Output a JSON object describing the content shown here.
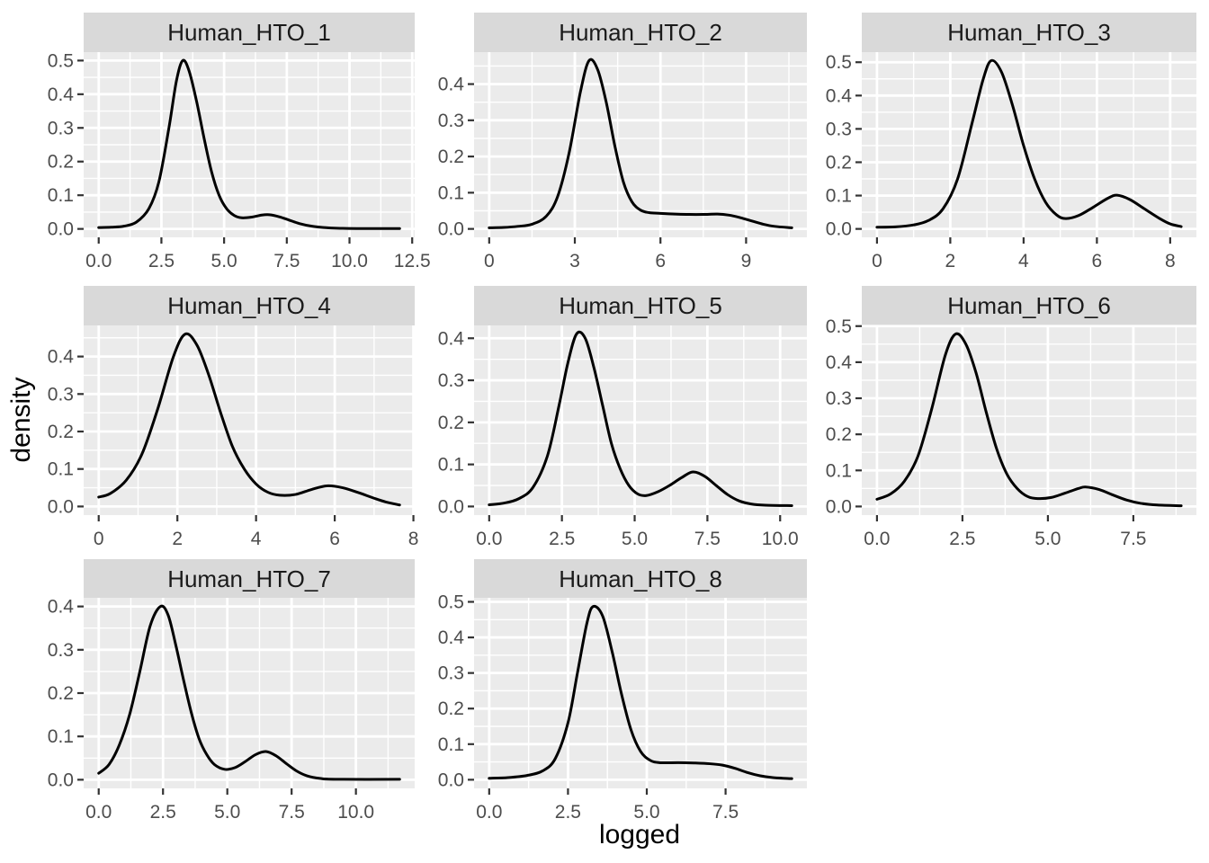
{
  "chart_data": {
    "type": "line",
    "subtype": "faceted-density",
    "xlabel": "logged",
    "ylabel": "density",
    "grid": "on",
    "legend": "none",
    "facet_grid": {
      "rows": 3,
      "cols": 3,
      "filled_cells": 8
    },
    "facets": [
      {
        "label": "Human_HTO_1",
        "x_max": 12.0,
        "y_peak": 0.5,
        "x_ticks": [
          0,
          2.5,
          5,
          7.5,
          10,
          12.5
        ],
        "x_tick_labels": [
          "0.0",
          "2.5",
          "5.0",
          "7.5",
          "10.0",
          "12.5"
        ],
        "y_ticks": [
          0,
          0.1,
          0.2,
          0.3,
          0.4,
          0.5
        ],
        "y_tick_labels": [
          "0.0",
          "0.1",
          "0.2",
          "0.3",
          "0.4",
          "0.5"
        ],
        "points": [
          [
            0,
            0.004
          ],
          [
            0.5,
            0.005
          ],
          [
            1,
            0.008
          ],
          [
            1.5,
            0.02
          ],
          [
            2,
            0.06
          ],
          [
            2.4,
            0.14
          ],
          [
            2.8,
            0.3
          ],
          [
            3.1,
            0.44
          ],
          [
            3.35,
            0.5
          ],
          [
            3.6,
            0.47
          ],
          [
            3.9,
            0.38
          ],
          [
            4.2,
            0.27
          ],
          [
            4.5,
            0.17
          ],
          [
            4.8,
            0.1
          ],
          [
            5.1,
            0.06
          ],
          [
            5.4,
            0.04
          ],
          [
            5.7,
            0.033
          ],
          [
            6.1,
            0.035
          ],
          [
            6.5,
            0.041
          ],
          [
            6.8,
            0.042
          ],
          [
            7.2,
            0.036
          ],
          [
            7.6,
            0.026
          ],
          [
            8,
            0.016
          ],
          [
            8.5,
            0.008
          ],
          [
            9,
            0.004
          ],
          [
            9.5,
            0.002
          ],
          [
            10.5,
            0.001
          ],
          [
            12,
            0.001
          ]
        ]
      },
      {
        "label": "Human_HTO_2",
        "x_max": 10.6,
        "y_peak": 0.465,
        "x_ticks": [
          0,
          3,
          6,
          9
        ],
        "x_tick_labels": [
          "0",
          "3",
          "6",
          "9"
        ],
        "y_ticks": [
          0,
          0.1,
          0.2,
          0.3,
          0.4
        ],
        "y_tick_labels": [
          "0.0",
          "0.1",
          "0.2",
          "0.3",
          "0.4"
        ],
        "points": [
          [
            0,
            0.003
          ],
          [
            0.5,
            0.004
          ],
          [
            1,
            0.007
          ],
          [
            1.5,
            0.013
          ],
          [
            2,
            0.035
          ],
          [
            2.4,
            0.09
          ],
          [
            2.8,
            0.21
          ],
          [
            3.2,
            0.38
          ],
          [
            3.5,
            0.465
          ],
          [
            3.8,
            0.44
          ],
          [
            4.1,
            0.35
          ],
          [
            4.4,
            0.23
          ],
          [
            4.7,
            0.13
          ],
          [
            5,
            0.075
          ],
          [
            5.3,
            0.052
          ],
          [
            5.6,
            0.045
          ],
          [
            6,
            0.043
          ],
          [
            6.5,
            0.041
          ],
          [
            7,
            0.04
          ],
          [
            7.5,
            0.04
          ],
          [
            8,
            0.041
          ],
          [
            8.4,
            0.038
          ],
          [
            8.8,
            0.031
          ],
          [
            9.2,
            0.022
          ],
          [
            9.6,
            0.013
          ],
          [
            10,
            0.007
          ],
          [
            10.6,
            0.003
          ]
        ]
      },
      {
        "label": "Human_HTO_3",
        "x_max": 8.3,
        "y_peak": 0.505,
        "x_ticks": [
          0,
          2,
          4,
          6,
          8
        ],
        "x_tick_labels": [
          "0",
          "2",
          "4",
          "6",
          "8"
        ],
        "y_ticks": [
          0,
          0.1,
          0.2,
          0.3,
          0.4,
          0.5
        ],
        "y_tick_labels": [
          "0.0",
          "0.1",
          "0.2",
          "0.3",
          "0.4",
          "0.5"
        ],
        "points": [
          [
            0,
            0.005
          ],
          [
            0.5,
            0.006
          ],
          [
            1,
            0.012
          ],
          [
            1.4,
            0.025
          ],
          [
            1.8,
            0.06
          ],
          [
            2.2,
            0.15
          ],
          [
            2.6,
            0.32
          ],
          [
            2.9,
            0.45
          ],
          [
            3.12,
            0.505
          ],
          [
            3.4,
            0.47
          ],
          [
            3.7,
            0.37
          ],
          [
            4,
            0.25
          ],
          [
            4.3,
            0.15
          ],
          [
            4.6,
            0.08
          ],
          [
            4.9,
            0.042
          ],
          [
            5.15,
            0.031
          ],
          [
            5.5,
            0.04
          ],
          [
            5.9,
            0.065
          ],
          [
            6.3,
            0.092
          ],
          [
            6.55,
            0.101
          ],
          [
            6.9,
            0.088
          ],
          [
            7.3,
            0.06
          ],
          [
            7.7,
            0.032
          ],
          [
            8,
            0.015
          ],
          [
            8.3,
            0.007
          ]
        ]
      },
      {
        "label": "Human_HTO_4",
        "x_max": 7.65,
        "y_peak": 0.46,
        "x_ticks": [
          0,
          2,
          4,
          6,
          8
        ],
        "x_tick_labels": [
          "0",
          "2",
          "4",
          "6",
          "8"
        ],
        "y_ticks": [
          0,
          0.1,
          0.2,
          0.3,
          0.4
        ],
        "y_tick_labels": [
          "0.0",
          "0.1",
          "0.2",
          "0.3",
          "0.4"
        ],
        "points": [
          [
            0,
            0.025
          ],
          [
            0.3,
            0.035
          ],
          [
            0.7,
            0.07
          ],
          [
            1.1,
            0.14
          ],
          [
            1.5,
            0.26
          ],
          [
            1.9,
            0.4
          ],
          [
            2.2,
            0.46
          ],
          [
            2.5,
            0.43
          ],
          [
            2.8,
            0.35
          ],
          [
            3.1,
            0.25
          ],
          [
            3.4,
            0.16
          ],
          [
            3.7,
            0.1
          ],
          [
            4,
            0.06
          ],
          [
            4.3,
            0.038
          ],
          [
            4.6,
            0.03
          ],
          [
            5,
            0.032
          ],
          [
            5.4,
            0.045
          ],
          [
            5.8,
            0.055
          ],
          [
            6.2,
            0.05
          ],
          [
            6.6,
            0.037
          ],
          [
            7,
            0.022
          ],
          [
            7.3,
            0.012
          ],
          [
            7.65,
            0.004
          ]
        ]
      },
      {
        "label": "Human_HTO_5",
        "x_max": 10.4,
        "y_peak": 0.41,
        "x_ticks": [
          0,
          2.5,
          5,
          7.5,
          10
        ],
        "x_tick_labels": [
          "0.0",
          "2.5",
          "5.0",
          "7.5",
          "10.0"
        ],
        "y_ticks": [
          0,
          0.1,
          0.2,
          0.3,
          0.4
        ],
        "y_tick_labels": [
          "0.0",
          "0.1",
          "0.2",
          "0.3",
          "0.4"
        ],
        "points": [
          [
            0,
            0.004
          ],
          [
            0.5,
            0.008
          ],
          [
            1,
            0.018
          ],
          [
            1.5,
            0.045
          ],
          [
            2,
            0.12
          ],
          [
            2.4,
            0.24
          ],
          [
            2.7,
            0.34
          ],
          [
            3,
            0.41
          ],
          [
            3.3,
            0.4
          ],
          [
            3.6,
            0.33
          ],
          [
            3.9,
            0.24
          ],
          [
            4.2,
            0.15
          ],
          [
            4.5,
            0.09
          ],
          [
            4.8,
            0.05
          ],
          [
            5.1,
            0.03
          ],
          [
            5.4,
            0.026
          ],
          [
            5.8,
            0.035
          ],
          [
            6.2,
            0.05
          ],
          [
            6.6,
            0.068
          ],
          [
            7,
            0.082
          ],
          [
            7.4,
            0.072
          ],
          [
            7.8,
            0.05
          ],
          [
            8.2,
            0.028
          ],
          [
            8.6,
            0.013
          ],
          [
            9,
            0.006
          ],
          [
            9.5,
            0.003
          ],
          [
            10.4,
            0.002
          ]
        ]
      },
      {
        "label": "Human_HTO_6",
        "x_max": 8.9,
        "y_peak": 0.478,
        "x_ticks": [
          0,
          2.5,
          5,
          7.5
        ],
        "x_tick_labels": [
          "0.0",
          "2.5",
          "5.0",
          "7.5"
        ],
        "y_ticks": [
          0,
          0.1,
          0.2,
          0.3,
          0.4,
          0.5
        ],
        "y_tick_labels": [
          "0.0",
          "0.1",
          "0.2",
          "0.3",
          "0.4",
          "0.5"
        ],
        "points": [
          [
            0,
            0.02
          ],
          [
            0.4,
            0.035
          ],
          [
            0.8,
            0.07
          ],
          [
            1.2,
            0.14
          ],
          [
            1.6,
            0.27
          ],
          [
            2,
            0.42
          ],
          [
            2.3,
            0.478
          ],
          [
            2.6,
            0.45
          ],
          [
            2.9,
            0.37
          ],
          [
            3.2,
            0.26
          ],
          [
            3.5,
            0.16
          ],
          [
            3.8,
            0.09
          ],
          [
            4.1,
            0.05
          ],
          [
            4.4,
            0.028
          ],
          [
            4.7,
            0.022
          ],
          [
            5.1,
            0.025
          ],
          [
            5.5,
            0.037
          ],
          [
            5.9,
            0.05
          ],
          [
            6.1,
            0.054
          ],
          [
            6.5,
            0.047
          ],
          [
            6.9,
            0.032
          ],
          [
            7.3,
            0.018
          ],
          [
            7.7,
            0.009
          ],
          [
            8.2,
            0.004
          ],
          [
            8.9,
            0.002
          ]
        ]
      },
      {
        "label": "Human_HTO_7",
        "x_max": 11.7,
        "y_peak": 0.4,
        "x_ticks": [
          0,
          2.5,
          5,
          7.5,
          10
        ],
        "x_tick_labels": [
          "0.0",
          "2.5",
          "5.0",
          "7.5",
          "10.0"
        ],
        "y_ticks": [
          0,
          0.1,
          0.2,
          0.3,
          0.4
        ],
        "y_tick_labels": [
          "0.0",
          "0.1",
          "0.2",
          "0.3",
          "0.4"
        ],
        "points": [
          [
            0,
            0.015
          ],
          [
            0.4,
            0.035
          ],
          [
            0.8,
            0.08
          ],
          [
            1.2,
            0.15
          ],
          [
            1.6,
            0.25
          ],
          [
            2,
            0.355
          ],
          [
            2.4,
            0.4
          ],
          [
            2.7,
            0.38
          ],
          [
            3,
            0.31
          ],
          [
            3.3,
            0.23
          ],
          [
            3.6,
            0.155
          ],
          [
            3.9,
            0.095
          ],
          [
            4.2,
            0.058
          ],
          [
            4.5,
            0.035
          ],
          [
            4.9,
            0.024
          ],
          [
            5.3,
            0.028
          ],
          [
            5.7,
            0.042
          ],
          [
            6.1,
            0.058
          ],
          [
            6.5,
            0.065
          ],
          [
            6.9,
            0.055
          ],
          [
            7.3,
            0.037
          ],
          [
            7.7,
            0.02
          ],
          [
            8.1,
            0.009
          ],
          [
            8.6,
            0.003
          ],
          [
            9.2,
            0.001
          ],
          [
            11.7,
            0.001
          ]
        ]
      },
      {
        "label": "Human_HTO_8",
        "x_max": 9.6,
        "y_peak": 0.487,
        "x_ticks": [
          0,
          2.5,
          5,
          7.5
        ],
        "x_tick_labels": [
          "0.0",
          "2.5",
          "5.0",
          "7.5"
        ],
        "y_ticks": [
          0,
          0.1,
          0.2,
          0.3,
          0.4,
          0.5
        ],
        "y_tick_labels": [
          "0.0",
          "0.1",
          "0.2",
          "0.3",
          "0.4",
          "0.5"
        ],
        "points": [
          [
            0,
            0.004
          ],
          [
            0.6,
            0.006
          ],
          [
            1.2,
            0.012
          ],
          [
            1.7,
            0.025
          ],
          [
            2.1,
            0.06
          ],
          [
            2.5,
            0.16
          ],
          [
            2.8,
            0.3
          ],
          [
            3.1,
            0.44
          ],
          [
            3.3,
            0.487
          ],
          [
            3.6,
            0.46
          ],
          [
            3.9,
            0.36
          ],
          [
            4.2,
            0.24
          ],
          [
            4.5,
            0.14
          ],
          [
            4.8,
            0.08
          ],
          [
            5.1,
            0.055
          ],
          [
            5.4,
            0.048
          ],
          [
            6,
            0.048
          ],
          [
            6.5,
            0.047
          ],
          [
            7,
            0.045
          ],
          [
            7.4,
            0.041
          ],
          [
            7.8,
            0.032
          ],
          [
            8.2,
            0.02
          ],
          [
            8.6,
            0.011
          ],
          [
            9,
            0.006
          ],
          [
            9.6,
            0.003
          ]
        ]
      }
    ],
    "style": {
      "background": "#FFFFFF",
      "panel_background": "#EBEBEB",
      "strip_background": "#D9D9D9",
      "gridline_color": "#FFFFFF",
      "curve_color": "#000000",
      "tick_mark_color": "#333333",
      "tick_label_color": "#4D4D4D",
      "strip_text_color": "#1A1A1A",
      "axis_title_color": "#000000"
    }
  }
}
